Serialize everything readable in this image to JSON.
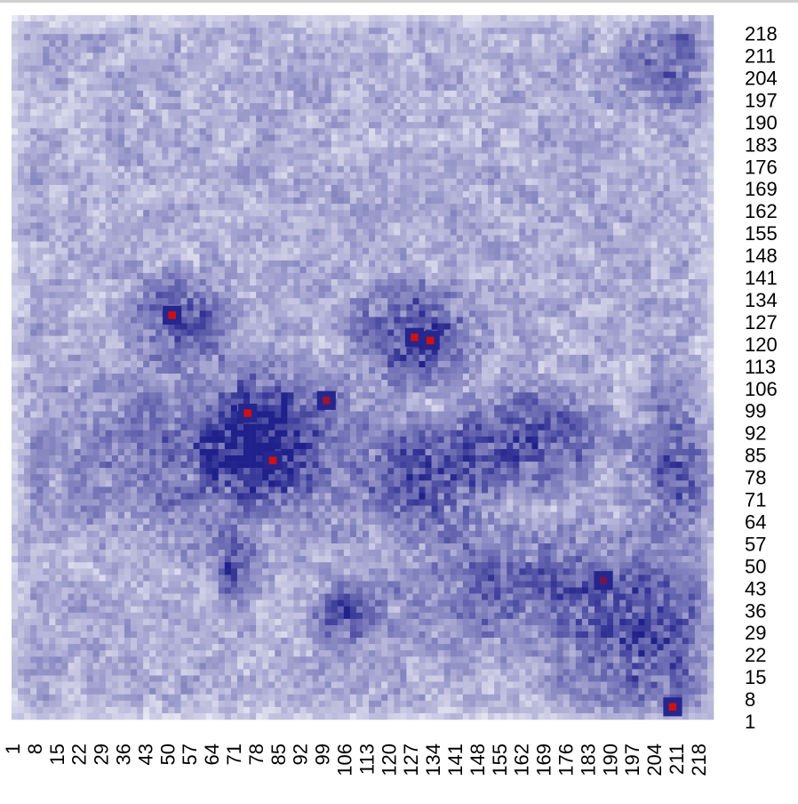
{
  "chart_data": {
    "type": "heatmap",
    "title": "",
    "xlabel": "",
    "ylabel": "",
    "x_tick_labels": [
      "1",
      "8",
      "15",
      "22",
      "29",
      "36",
      "43",
      "50",
      "57",
      "64",
      "71",
      "78",
      "85",
      "92",
      "99",
      "106",
      "113",
      "120",
      "127",
      "134",
      "141",
      "148",
      "155",
      "162",
      "169",
      "176",
      "183",
      "190",
      "197",
      "204",
      "211",
      "218"
    ],
    "y_tick_labels": [
      "1",
      "8",
      "15",
      "22",
      "29",
      "36",
      "43",
      "50",
      "57",
      "64",
      "71",
      "78",
      "85",
      "92",
      "99",
      "106",
      "113",
      "120",
      "127",
      "134",
      "141",
      "148",
      "155",
      "162",
      "169",
      "176",
      "183",
      "190",
      "197",
      "204",
      "211",
      "218"
    ],
    "x_range": [
      1,
      224
    ],
    "y_range": [
      1,
      224
    ],
    "y_axis_position": "right",
    "x_tick_rotation": "vertical",
    "value_range": [
      0,
      1
    ],
    "color_scale": {
      "low": "#ffffff",
      "mid": "#1c1c8a",
      "high": "#d01010"
    },
    "hotspots": [
      {
        "x": 52,
        "y": 129,
        "value": 1.0
      },
      {
        "x": 129,
        "y": 122,
        "value": 1.0
      },
      {
        "x": 134,
        "y": 121,
        "value": 1.0
      },
      {
        "x": 76,
        "y": 98,
        "value": 1.0
      },
      {
        "x": 101,
        "y": 102,
        "value": 0.95
      },
      {
        "x": 84,
        "y": 83,
        "value": 1.0
      },
      {
        "x": 189,
        "y": 45,
        "value": 0.9
      },
      {
        "x": 211,
        "y": 5,
        "value": 1.0
      }
    ],
    "intense_regions": [
      {
        "x": [
          43,
          66
        ],
        "y": [
          118,
          138
        ],
        "value": 0.75
      },
      {
        "x": [
          115,
          145
        ],
        "y": [
          110,
          135
        ],
        "value": 0.8
      },
      {
        "x": [
          68,
          95
        ],
        "y": [
          75,
          102
        ],
        "value": 0.8
      },
      {
        "x": [
          145,
          185
        ],
        "y": [
          78,
          102
        ],
        "value": 0.75
      },
      {
        "x": [
          120,
          150
        ],
        "y": [
          62,
          90
        ],
        "value": 0.7
      },
      {
        "x": [
          100,
          112
        ],
        "y": [
          28,
          40
        ],
        "value": 0.75
      },
      {
        "x": [
          68,
          75
        ],
        "y": [
          40,
          55
        ],
        "value": 0.7
      },
      {
        "x": [
          200,
          224
        ],
        "y": [
          60,
          100
        ],
        "value": 0.65
      },
      {
        "x": [
          180,
          224
        ],
        "y": [
          0,
          40
        ],
        "value": 0.6
      },
      {
        "x": [
          20,
          120
        ],
        "y": [
          60,
          110
        ],
        "value": 0.55
      },
      {
        "x": [
          120,
          220
        ],
        "y": [
          28,
          58
        ],
        "value": 0.55
      },
      {
        "x": [
          200,
          224
        ],
        "y": [
          195,
          224
        ],
        "value": 0.5
      }
    ]
  }
}
